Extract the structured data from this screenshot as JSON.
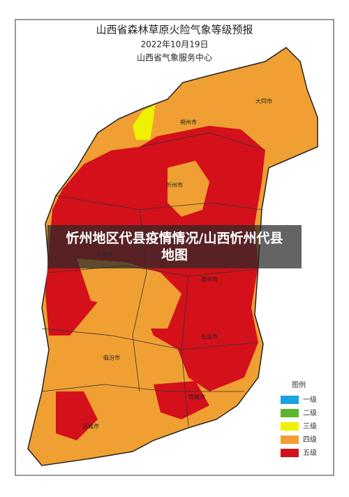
{
  "header": {
    "title": "山西省森林草原火险气象等级预报",
    "date": "2022年10月19日",
    "issuer": "山西省气象服务中心"
  },
  "cities": [
    "大同市",
    "朔州市",
    "忻州市",
    "吕梁市",
    "晋中市",
    "长治市",
    "临汾市",
    "晋城市",
    "运城市"
  ],
  "legend": {
    "title": "图例",
    "items": [
      {
        "label": "一级",
        "color": "#1ba2e0"
      },
      {
        "label": "二级",
        "color": "#5db52f"
      },
      {
        "label": "三级",
        "color": "#eef200"
      },
      {
        "label": "四级",
        "color": "#f0a033"
      },
      {
        "label": "五级",
        "color": "#d4101a"
      }
    ]
  },
  "caption": "忻州地区代县疫情情况/山西忻州代县地图"
}
